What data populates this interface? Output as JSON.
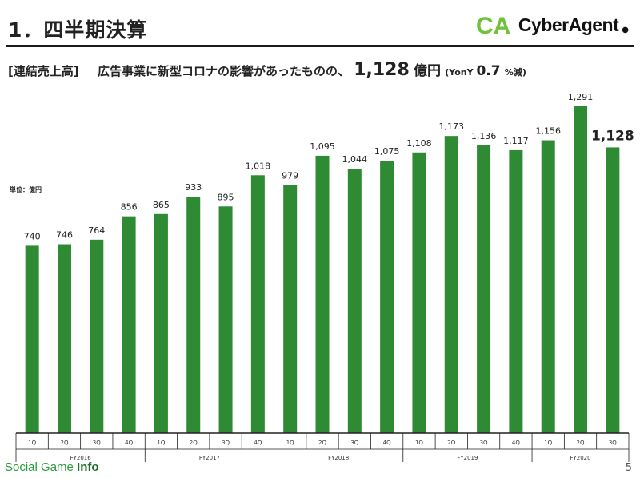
{
  "header": {
    "title": "1．四半期決算",
    "logo_text": "CyberAgent",
    "logo_mark": "CA"
  },
  "subtitle": {
    "tag": "[連結売上高]",
    "text": "広告事業に新型コロナの影響があったものの、",
    "value": "1,128",
    "unit": "億円",
    "yoy_open": "(YonY ",
    "yoy_value": "0.7",
    "yoy_close": "%減)"
  },
  "unit_label": "単位：億円",
  "chart_data": {
    "type": "bar",
    "categories": [
      "1Q",
      "2Q",
      "3Q",
      "4Q",
      "1Q",
      "2Q",
      "3Q",
      "4Q",
      "1Q",
      "2Q",
      "3Q",
      "4Q",
      "1Q",
      "2Q",
      "3Q",
      "4Q",
      "1Q",
      "2Q",
      "3Q"
    ],
    "fiscal_years": [
      {
        "label": "FY2016",
        "count": 4
      },
      {
        "label": "FY2017",
        "count": 4
      },
      {
        "label": "FY2018",
        "count": 4
      },
      {
        "label": "FY2019",
        "count": 4
      },
      {
        "label": "FY2020",
        "count": 3
      }
    ],
    "values": [
      740,
      746,
      764,
      856,
      865,
      933,
      895,
      1018,
      979,
      1095,
      1044,
      1075,
      1108,
      1173,
      1136,
      1117,
      1156,
      1291,
      1128
    ],
    "value_labels": [
      "740",
      "746",
      "764",
      "856",
      "865",
      "933",
      "895",
      "1,018",
      "979",
      "1,095",
      "1,044",
      "1,075",
      "1,108",
      "1,173",
      "1,136",
      "1,117",
      "1,156",
      "1,291",
      "1,128"
    ],
    "highlight_index": 18,
    "ylim": [
      0,
      1300
    ],
    "grid": false,
    "bar_color": "#2e8b34"
  },
  "footer": {
    "watermark_a": "Social Game ",
    "watermark_b": "Info",
    "page_number": "5"
  },
  "colors": {
    "logo_green": "#6fc23a",
    "bar_green": "#2e8b34"
  }
}
